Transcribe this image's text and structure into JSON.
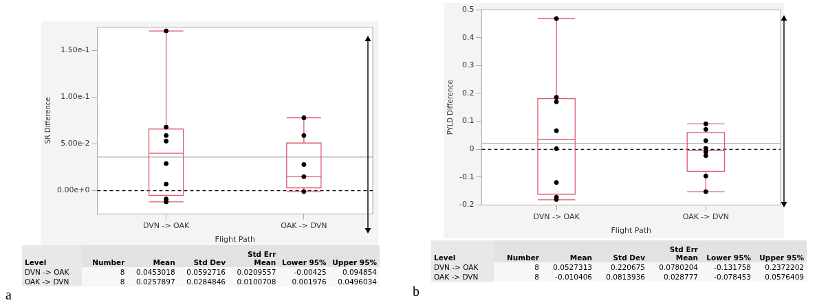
{
  "chart_data": [
    {
      "type": "box",
      "xlabel": "Flight Path",
      "ylabel": "SR Difference",
      "categories": [
        "DVN -> OAK",
        "OAK -> DVN"
      ],
      "ylim": [
        -0.025,
        0.175
      ],
      "yticks": [
        {
          "value": 0,
          "label": "0.00e+0"
        },
        {
          "value": 0.05,
          "label": "5.00e-2"
        },
        {
          "value": 0.1,
          "label": "1.00e-1"
        },
        {
          "value": 0.15,
          "label": "1.50e-1"
        }
      ],
      "marker": "circle",
      "series": [
        {
          "type": "box",
          "color": "#e05a6b",
          "boxes": [
            {
              "low": -0.012,
              "q1": -0.005,
              "median": 0.04,
              "q3": 0.066,
              "high": 0.171
            },
            {
              "low": -0.001,
              "q1": 0.003,
              "median": 0.015,
              "q3": 0.051,
              "high": 0.078
            }
          ]
        },
        {
          "type": "scatter",
          "color": "#000000",
          "x": [
            "DVN -> OAK",
            "DVN -> OAK",
            "DVN -> OAK",
            "DVN -> OAK",
            "DVN -> OAK",
            "DVN -> OAK",
            "DVN -> OAK",
            "DVN -> OAK",
            "OAK -> DVN",
            "OAK -> DVN",
            "OAK -> DVN",
            "OAK -> DVN",
            "OAK -> DVN"
          ],
          "values": [
            0.171,
            0.068,
            0.059,
            0.053,
            0.029,
            0.007,
            -0.009,
            -0.012,
            0.078,
            0.059,
            0.028,
            0.015,
            -0.001
          ]
        }
      ],
      "ref_lines": [
        {
          "axis": "y",
          "value": 0.036,
          "color": "#999999",
          "line_style": "solid"
        },
        {
          "axis": "y",
          "value": 0,
          "color": "#000000",
          "line_style": "dashed"
        }
      ],
      "annotations": [
        "a",
        "Level",
        "Number",
        "Mean",
        "Std Dev",
        "Std Err Mean",
        "Lower 95%",
        "Upper 95%",
        "DVN -> OAK",
        "8",
        "0.0453018",
        "0.0592716",
        "0.0209557",
        "-0.00425",
        "0.094854",
        "OAK -> DVN",
        "8",
        "0.0257897",
        "0.0284846",
        "0.0100708",
        "0.001976",
        "0.0496034"
      ]
    },
    {
      "type": "box",
      "xlabel": "Flight Path",
      "ylabel": "PYLD Difference",
      "categories": [
        "DVN -> OAK",
        "OAK -> DVN"
      ],
      "ylim": [
        -0.2,
        0.5
      ],
      "yticks": [
        -0.2,
        -0.1,
        0,
        0.1,
        0.2,
        0.3,
        0.4,
        0.5
      ],
      "marker": "circle",
      "series": [
        {
          "type": "box",
          "color": "#e05a6b",
          "boxes": [
            {
              "low": -0.181,
              "q1": -0.161,
              "median": 0.034,
              "q3": 0.181,
              "high": 0.468
            },
            {
              "low": -0.152,
              "q1": -0.079,
              "median": -0.005,
              "q3": 0.06,
              "high": 0.091
            }
          ]
        },
        {
          "type": "scatter",
          "color": "#000000",
          "x": [
            "DVN -> OAK",
            "DVN -> OAK",
            "DVN -> OAK",
            "DVN -> OAK",
            "DVN -> OAK",
            "DVN -> OAK",
            "DVN -> OAK",
            "DVN -> OAK",
            "OAK -> DVN",
            "OAK -> DVN",
            "OAK -> DVN",
            "OAK -> DVN",
            "OAK -> DVN",
            "OAK -> DVN",
            "OAK -> DVN",
            "OAK -> DVN"
          ],
          "values": [
            0.468,
            0.186,
            0.17,
            0.066,
            0.002,
            -0.119,
            -0.172,
            -0.18,
            0.091,
            0.071,
            0.031,
            0.003,
            -0.01,
            -0.023,
            -0.096,
            -0.152
          ]
        }
      ],
      "ref_lines": [
        {
          "axis": "y",
          "value": 0.021,
          "color": "#999999",
          "line_style": "solid"
        },
        {
          "axis": "y",
          "value": 0,
          "color": "#000000",
          "line_style": "dashed"
        }
      ],
      "annotations": [
        "b",
        "Level",
        "Number",
        "Mean",
        "Std Dev",
        "Std Err Mean",
        "Lower 95%",
        "Upper 95%",
        "DVN -> OAK",
        "8",
        "0.0527313",
        "0.220675",
        "0.0780204",
        "-0.131758",
        "0.2372202",
        "OAK -> DVN",
        "8",
        "-0.010406",
        "0.0813936",
        "0.028777",
        "-0.078453",
        "0.0576409"
      ]
    }
  ]
}
